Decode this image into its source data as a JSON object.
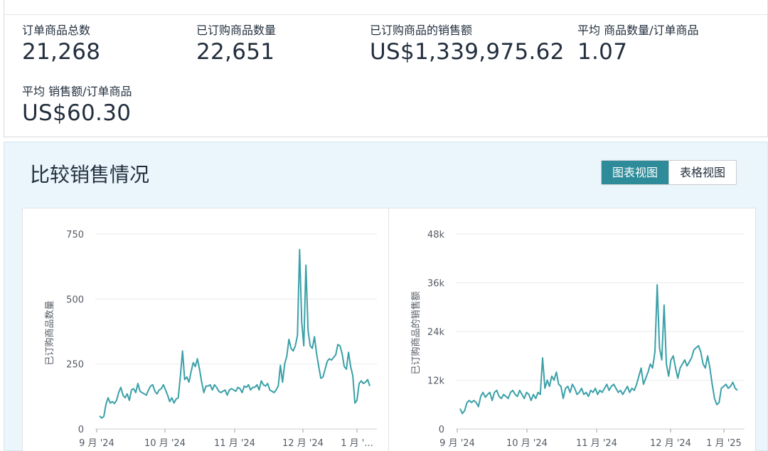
{
  "metrics": [
    {
      "label": "订单商品总数",
      "value": "21,268"
    },
    {
      "label": "已订购商品数量",
      "value": "22,651"
    },
    {
      "label": "已订购商品的销售额",
      "value": "US$1,339,975.62"
    },
    {
      "label": "平均 商品数量/订单商品",
      "value": "1.07"
    },
    {
      "label": "平均 销售额/订单商品",
      "value": "US$60.30"
    }
  ],
  "compare": {
    "title": "比较销售情况",
    "view_chart": "图表视图",
    "view_table": "表格视图",
    "active_view": "图表视图"
  },
  "colors": {
    "line": "#3aa0a8",
    "active_button": "#2e8c9a",
    "panel_background": "#eaf6fb"
  },
  "chart_data": [
    {
      "type": "line",
      "ylabel": "已订购商品数量",
      "ylim": [
        0,
        750
      ],
      "yticks": [
        "0",
        "250",
        "500",
        "750"
      ],
      "xticks": [
        "9 月 '24",
        "10 月 '24",
        "11 月 '24",
        "12 月 '24",
        "1 月 '..."
      ],
      "grid": true,
      "series": [
        {
          "values": [
            50,
            42,
            48,
            95,
            120,
            100,
            105,
            98,
            110,
            140,
            160,
            130,
            120,
            135,
            110,
            150,
            155,
            140,
            175,
            145,
            140,
            135,
            130,
            150,
            165,
            170,
            145,
            135,
            150,
            155,
            170,
            150,
            130,
            105,
            120,
            100,
            115,
            120,
            205,
            300,
            190,
            200,
            180,
            220,
            255,
            240,
            270,
            230,
            180,
            140,
            165,
            165,
            170,
            150,
            170,
            160,
            145,
            140,
            145,
            150,
            130,
            150,
            155,
            150,
            145,
            160,
            155,
            140,
            165,
            160,
            170,
            150,
            160,
            160,
            170,
            150,
            185,
            170,
            165,
            175,
            150,
            145,
            140,
            150,
            165,
            245,
            180,
            250,
            280,
            345,
            310,
            300,
            320,
            360,
            690,
            410,
            320,
            630,
            380,
            320,
            310,
            355,
            290,
            240,
            195,
            200,
            230,
            260,
            270,
            265,
            275,
            285,
            325,
            320,
            290,
            240,
            230,
            295,
            240,
            205,
            100,
            110,
            175,
            185,
            175,
            180,
            190,
            165
          ]
        }
      ]
    },
    {
      "type": "line",
      "ylabel": "已订购商品的销售额",
      "ylim": [
        0,
        48000
      ],
      "yticks": [
        "0",
        "12k",
        "24k",
        "36k",
        "48k"
      ],
      "xticks": [
        "9 月 '24",
        "10 月 '24",
        "11 月 '24",
        "12 月 '24",
        "1 月 '25"
      ],
      "grid": true,
      "series": [
        {
          "values": [
            5000,
            3800,
            4500,
            6500,
            7000,
            6500,
            7000,
            6500,
            5500,
            8000,
            9000,
            7800,
            8500,
            9000,
            7000,
            9000,
            9500,
            8000,
            7500,
            8500,
            8000,
            7500,
            9000,
            9500,
            8500,
            8000,
            9500,
            8500,
            7500,
            9000,
            8500,
            7000,
            8500,
            7500,
            9000,
            8500,
            17500,
            10000,
            12000,
            10500,
            13000,
            12000,
            14000,
            11000,
            10500,
            7500,
            10000,
            10500,
            9000,
            11000,
            10000,
            8500,
            9000,
            10000,
            8500,
            9000,
            8000,
            9500,
            9000,
            10000,
            8500,
            9500,
            9000,
            10000,
            11000,
            9500,
            10500,
            11000,
            10000,
            9000,
            9500,
            8500,
            9500,
            10500,
            9000,
            10000,
            9500,
            11000,
            13000,
            15000,
            11000,
            12500,
            14000,
            16000,
            15000,
            19000,
            35500,
            20000,
            17000,
            30500,
            16000,
            13000,
            17000,
            18000,
            15000,
            12500,
            15000,
            16000,
            17000,
            15500,
            16500,
            17500,
            19500,
            20000,
            20500,
            19000,
            16000,
            15000,
            18000,
            15000,
            11000,
            7500,
            6000,
            6500,
            10000,
            10500,
            11000,
            10000,
            10500,
            11500,
            10000,
            9500
          ]
        }
      ]
    }
  ]
}
